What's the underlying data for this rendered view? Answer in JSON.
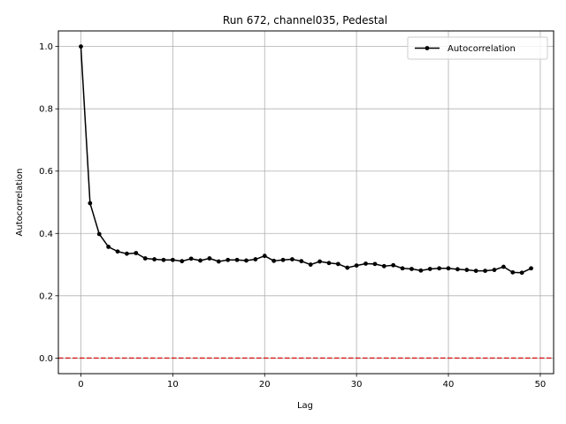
{
  "chart_data": {
    "type": "line",
    "title": "Run 672, channel035, Pedestal",
    "xlabel": "Lag",
    "ylabel": "Autocorrelation",
    "xlim": [
      -2.45,
      51.45
    ],
    "ylim": [
      -0.05,
      1.05
    ],
    "xticks": [
      0,
      10,
      20,
      30,
      40,
      50
    ],
    "yticks": [
      0.0,
      0.2,
      0.4,
      0.6,
      0.8,
      1.0
    ],
    "xtick_labels": [
      "0",
      "10",
      "20",
      "30",
      "40",
      "50"
    ],
    "ytick_labels": [
      "0.0",
      "0.2",
      "0.4",
      "0.6",
      "0.8",
      "1.0"
    ],
    "grid": true,
    "legend": "top-right",
    "series": [
      {
        "name": "Autocorrelation",
        "color": "#000000",
        "marker": "circle",
        "x": [
          0,
          1,
          2,
          3,
          4,
          5,
          6,
          7,
          8,
          9,
          10,
          11,
          12,
          13,
          14,
          15,
          16,
          17,
          18,
          19,
          20,
          21,
          22,
          23,
          24,
          25,
          26,
          27,
          28,
          29,
          30,
          31,
          32,
          33,
          34,
          35,
          36,
          37,
          38,
          39,
          40,
          41,
          42,
          43,
          44,
          45,
          46,
          47,
          48,
          49
        ],
        "y": [
          1.0,
          0.497,
          0.398,
          0.357,
          0.342,
          0.335,
          0.337,
          0.32,
          0.317,
          0.315,
          0.315,
          0.311,
          0.319,
          0.313,
          0.32,
          0.31,
          0.315,
          0.315,
          0.313,
          0.317,
          0.328,
          0.312,
          0.315,
          0.317,
          0.311,
          0.3,
          0.31,
          0.305,
          0.302,
          0.29,
          0.297,
          0.303,
          0.302,
          0.295,
          0.298,
          0.288,
          0.286,
          0.281,
          0.286,
          0.288,
          0.288,
          0.285,
          0.283,
          0.28,
          0.28,
          0.283,
          0.293,
          0.275,
          0.274,
          0.288
        ]
      }
    ],
    "reference_lines": [
      {
        "axis": "y",
        "value": 0.0,
        "color": "#d62728",
        "style": "dashed"
      }
    ]
  }
}
